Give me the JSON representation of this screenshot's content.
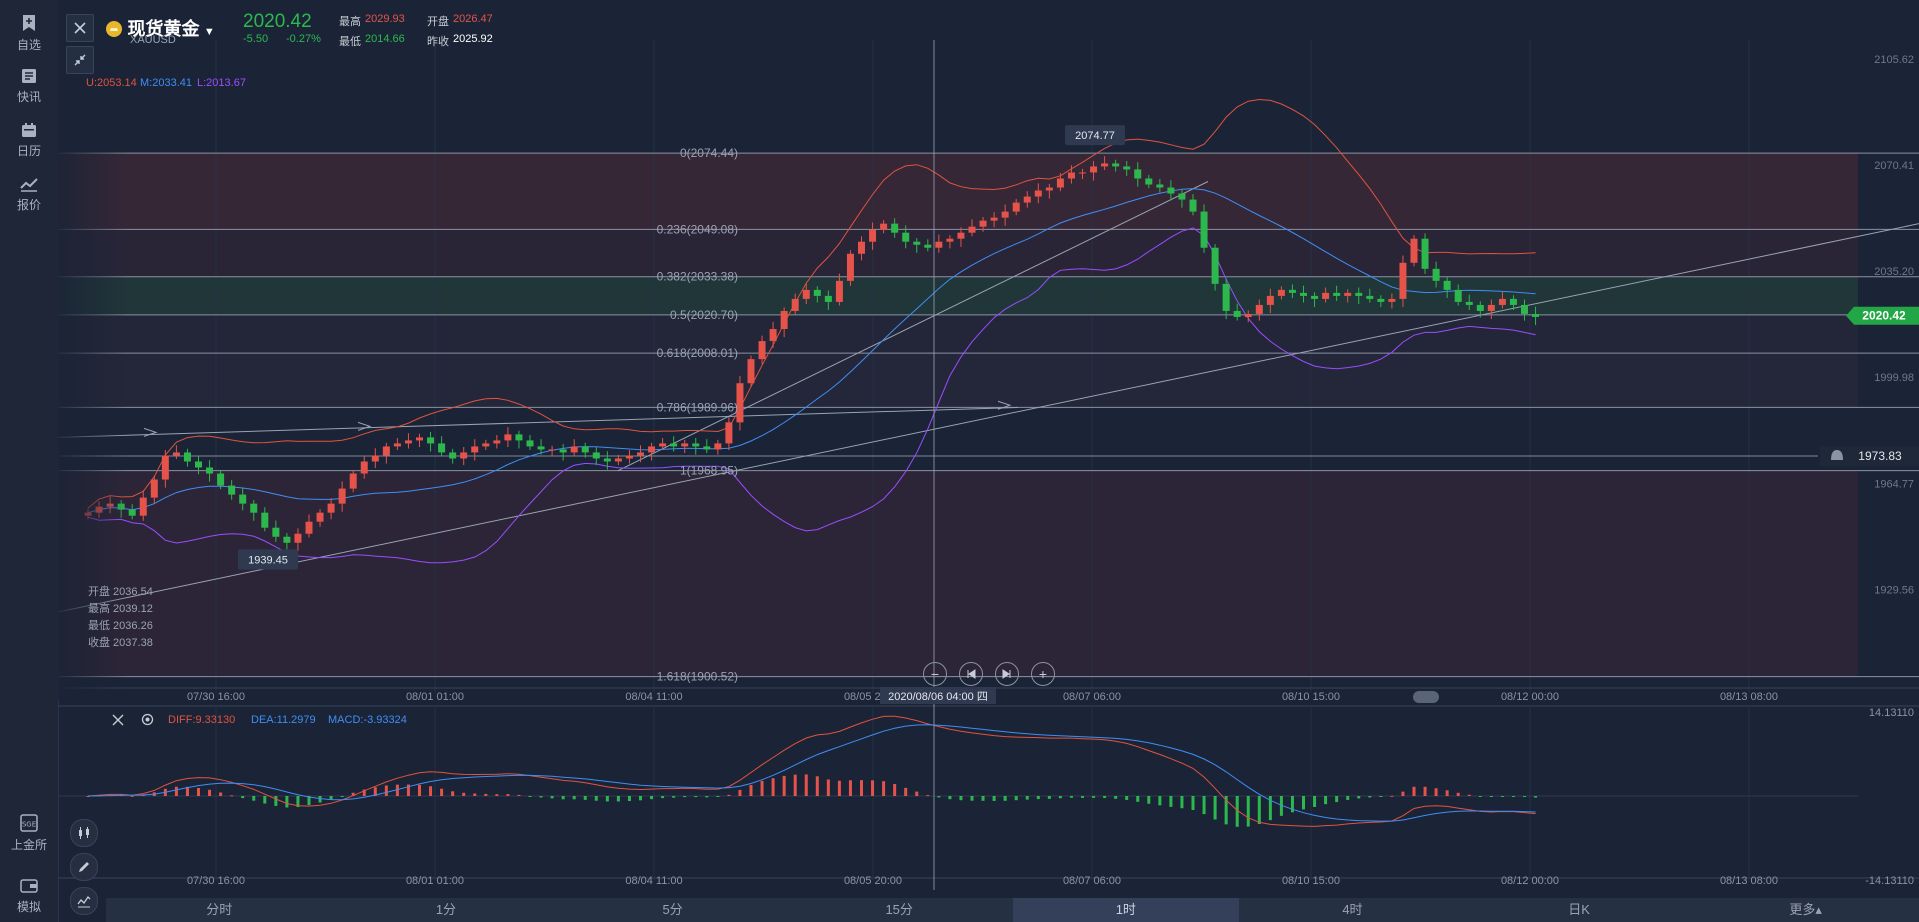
{
  "sidebar": {
    "items": [
      {
        "label": "自选",
        "icon": "bookmark-add-icon"
      },
      {
        "label": "快讯",
        "icon": "news-icon"
      },
      {
        "label": "日历",
        "icon": "calendar-icon"
      },
      {
        "label": "报价",
        "icon": "trend-chart-icon"
      }
    ],
    "bottom_items": [
      {
        "label": "上金所",
        "icon": "sge-icon"
      },
      {
        "label": "模拟",
        "icon": "wallet-icon"
      }
    ]
  },
  "symbol": {
    "name": "现货黄金",
    "code": "XAUUSD",
    "price": "2020.42",
    "change": "-5.50",
    "change_pct": "-0.27%",
    "high_label": "最高",
    "high": "2029.93",
    "open_label": "开盘",
    "open": "2026.47",
    "low_label": "最低",
    "low": "2014.66",
    "prev_label": "昨收",
    "prev_close": "2025.92"
  },
  "boll": {
    "u": "U:2053.14",
    "m": "M:2033.41",
    "l": "L:2013.67"
  },
  "macd": {
    "diff": "DIFF:9.33130",
    "dea": "DEA:11.2979",
    "macd": "MACD:-3.93324"
  },
  "ohlc_tooltip": {
    "open": "开盘 2036.54",
    "high": "最高 2039.12",
    "low": "最低 2036.26",
    "close": "收盘 2037.38"
  },
  "crosshair_label": "2020/08/06 04:00 四",
  "price_tag": "2020.42",
  "alert_price": "1973.83",
  "tabs": [
    "分时",
    "1分",
    "5分",
    "15分",
    "1时",
    "4时",
    "日K",
    "更多▴"
  ],
  "active_tab": 4,
  "colors": {
    "up": "#e5534b",
    "down": "#2db84d",
    "upper_band": "#e0533f",
    "mid_band": "#3f8ef5",
    "lower_band": "#9b4dff",
    "price_tag": "#23a746"
  },
  "chart_data": [
    {
      "type": "candlestick",
      "title": "现货黄金 XAUUSD 1时",
      "x_ticks": [
        "07/30 16:00",
        "08/01 01:00",
        "08/04 11:00",
        "08/05 20:00",
        "08/07 06:00",
        "08/10 15:00",
        "08/12 00:00",
        "08/13 08:00"
      ],
      "y_ticks": [
        2105.62,
        2070.41,
        2035.2,
        1999.98,
        1964.77,
        1929.56
      ],
      "ylim": [
        1895.1,
        2112.0
      ],
      "fibonacci": [
        {
          "label": "0(2074.44)",
          "value": 2074.44
        },
        {
          "label": "0.236(2049.08)",
          "value": 2049.08
        },
        {
          "label": "0.382(2033.38)",
          "value": 2033.38
        },
        {
          "label": "0.5(2020.70)",
          "value": 2020.7
        },
        {
          "label": "0.618(2008.01)",
          "value": 2008.01
        },
        {
          "label": "0.786(1989.96)",
          "value": 1989.96
        },
        {
          "label": "1(1968.95)",
          "value": 1968.95
        },
        {
          "label": "1.618(1900.52)",
          "value": 1900.52
        }
      ],
      "annotations": [
        {
          "label": "2074.77",
          "value": 2074.77
        },
        {
          "label": "1939.45",
          "value": 1939.45
        }
      ],
      "horizontal_line": 1973.83,
      "close_series": [
        1955,
        1957,
        1958,
        1956,
        1954,
        1960,
        1966,
        1974,
        1975,
        1972,
        1970,
        1968,
        1964,
        1961,
        1958,
        1955,
        1950,
        1947,
        1945,
        1948,
        1952,
        1955,
        1958,
        1963,
        1968,
        1972,
        1974,
        1977,
        1978,
        1979,
        1980,
        1978,
        1975,
        1973,
        1975,
        1977,
        1978,
        1979,
        1981,
        1979,
        1977,
        1976,
        1976,
        1975,
        1977,
        1975,
        1973,
        1972,
        1973,
        1974,
        1975,
        1977,
        1978,
        1977,
        1978,
        1977,
        1976,
        1978,
        1985,
        1998,
        2006,
        2012,
        2016,
        2022,
        2026,
        2029,
        2027,
        2025,
        2032,
        2041,
        2045,
        2049,
        2051,
        2048,
        2045,
        2044,
        2043,
        2045,
        2046,
        2048,
        2050,
        2052,
        2053,
        2055,
        2058,
        2060,
        2062,
        2063,
        2066,
        2068,
        2068,
        2070,
        2071,
        2070,
        2069,
        2066,
        2064,
        2063,
        2061,
        2059,
        2055,
        2043,
        2031,
        2022,
        2020,
        2021,
        2024,
        2027,
        2029,
        2028,
        2027,
        2026,
        2028,
        2027,
        2028,
        2027,
        2026,
        2025,
        2026,
        2038,
        2046,
        2036,
        2032,
        2029,
        2025,
        2024,
        2022,
        2024,
        2026,
        2024,
        2021,
        2020
      ]
    },
    {
      "type": "macd",
      "series_names": [
        "DIFF",
        "DEA",
        "MACD"
      ],
      "y_ticks": [
        14.1311,
        -14.1311
      ],
      "ylim": [
        -14.1311,
        14.1311
      ],
      "x_ticks": [
        "07/30 16:00",
        "08/01 01:00",
        "08/04 11:00",
        "08/05 20:00",
        "08/07 06:00",
        "08/10 15:00",
        "08/12 00:00",
        "08/13 08:00"
      ]
    }
  ]
}
